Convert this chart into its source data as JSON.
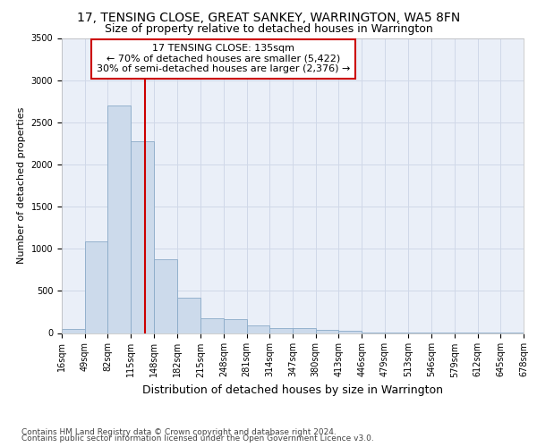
{
  "title": "17, TENSING CLOSE, GREAT SANKEY, WARRINGTON, WA5 8FN",
  "subtitle": "Size of property relative to detached houses in Warrington",
  "xlabel": "Distribution of detached houses by size in Warrington",
  "ylabel": "Number of detached properties",
  "bar_values": [
    50,
    1090,
    2700,
    2270,
    875,
    415,
    170,
    165,
    90,
    60,
    55,
    35,
    25,
    10,
    5,
    5,
    5,
    2,
    2,
    2
  ],
  "bin_edges": [
    16,
    49,
    82,
    115,
    148,
    182,
    215,
    248,
    281,
    314,
    347,
    380,
    413,
    446,
    479,
    513,
    546,
    579,
    612,
    645,
    678
  ],
  "bar_color": "#ccdaeb",
  "bar_edgecolor": "#8aaac8",
  "grid_color": "#d0d8e8",
  "background_color": "#eaeff8",
  "vline_x": 135,
  "vline_color": "#cc0000",
  "annotation_line1": "17 TENSING CLOSE: 135sqm",
  "annotation_line2": "← 70% of detached houses are smaller (5,422)",
  "annotation_line3": "30% of semi-detached houses are larger (2,376) →",
  "annotation_box_color": "#cc0000",
  "ylim": [
    0,
    3500
  ],
  "yticks": [
    0,
    500,
    1000,
    1500,
    2000,
    2500,
    3000,
    3500
  ],
  "footnote1": "Contains HM Land Registry data © Crown copyright and database right 2024.",
  "footnote2": "Contains public sector information licensed under the Open Government Licence v3.0.",
  "title_fontsize": 10,
  "subtitle_fontsize": 9,
  "xlabel_fontsize": 9,
  "ylabel_fontsize": 8,
  "tick_fontsize": 7,
  "annot_fontsize": 8,
  "footnote_fontsize": 6.5
}
